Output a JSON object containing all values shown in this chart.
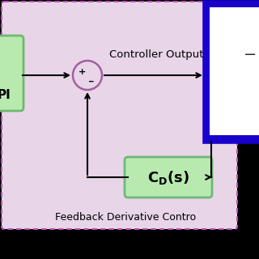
{
  "background_color": "#000000",
  "outer_bg_color": "#e8d5e8",
  "outer_border_color": "#bb55bb",
  "pi_box_color": "#b8eab0",
  "pi_box_edge_color": "#70b870",
  "cd_box_color": "#b8eab0",
  "cd_box_edge_color": "#70b878",
  "blue_border_color": "#1a00cc",
  "blue_inner_color": "#ffffff",
  "summing_circle_color": "#a060a0",
  "arrow_color": "#000000",
  "text_color": "#000000",
  "controller_output_label": "Controller Output",
  "feedback_label": "Feedback Derivative Contro",
  "pi_label": "PI",
  "figsize": [
    3.2,
    3.2
  ],
  "dpi": 100
}
